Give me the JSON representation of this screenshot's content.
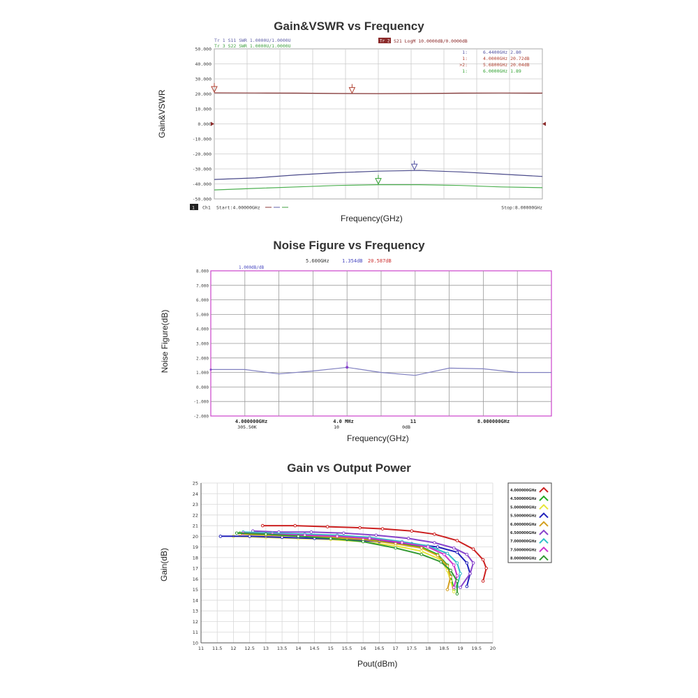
{
  "chart_data": [
    {
      "type": "line",
      "title": "Gain&VSWR vs Frequency",
      "xlabel": "Frequency(GHz)",
      "ylabel": "Gain&VSWR",
      "ylim": [
        -50,
        50
      ],
      "xlim": [
        4,
        8
      ],
      "ytick_labels": [
        "50.000",
        "40.000",
        "30.000",
        "20.000",
        "10.000",
        "0.000",
        "-10.000",
        "-20.000",
        "-30.000",
        "-40.000",
        "-50.000"
      ],
      "trace_header": {
        "tr1": "Tr 1  S11 SWR 1.0000U/1.0000U",
        "tr3": "Tr 3  S22 SWR 1.0000U/1.0000U",
        "tr2_badge": "Tr 2",
        "tr2": "S21 LogM 10.0000dB/0.0000dB"
      },
      "markers": [
        {
          "id": "1:",
          "text": "6.4400GHz 2.80",
          "color": "#5050a0"
        },
        {
          "id": "1:",
          "text": "4.0000GHz 20.72dB",
          "color": "#b04030"
        },
        {
          "id": ">2:",
          "text": "5.6800GHz 20.04dB",
          "color": "#b04030"
        },
        {
          "id": "1:",
          "text": "6.0000GHz 1.89",
          "color": "#30a030"
        }
      ],
      "footer": {
        "ch_badge": "1",
        "ch": "Ch1",
        "start": "Start:4.00000GHz",
        "stop": "Stop:8.00000GHz"
      },
      "series": [
        {
          "color": "#8b3a3a",
          "x": [
            4.0,
            4.5,
            5.0,
            5.5,
            6.0,
            6.5,
            7.0,
            7.5,
            8.0
          ],
          "values": [
            20.7,
            20.6,
            20.5,
            20.3,
            20.2,
            20.3,
            20.5,
            20.6,
            20.5
          ]
        },
        {
          "color": "#4a4a8a",
          "x": [
            4.0,
            4.5,
            5.0,
            5.5,
            6.0,
            6.5,
            7.0,
            7.5,
            8.0
          ],
          "values": [
            -37.0,
            -36.0,
            -34.0,
            -32.5,
            -31.5,
            -31.0,
            -32.0,
            -33.5,
            -35.0
          ]
        },
        {
          "color": "#4caf50",
          "x": [
            4.0,
            4.5,
            5.0,
            5.5,
            6.0,
            6.5,
            7.0,
            7.5,
            8.0
          ],
          "values": [
            -44.0,
            -43.0,
            -42.0,
            -41.0,
            -40.5,
            -40.5,
            -41.0,
            -42.0,
            -42.5
          ]
        }
      ]
    },
    {
      "type": "line",
      "title": "Noise Figure vs Frequency",
      "xlabel": "Frequency(GHz)",
      "ylabel": "Noise Figure(dB)",
      "ylim": [
        -2,
        8
      ],
      "ytick_labels": [
        "8.000",
        "7.000",
        "6.000",
        "5.000",
        "4.000",
        "3.000",
        "2.000",
        "1.000",
        "0.000",
        "-1.000",
        "-2.000"
      ],
      "header": {
        "freq": "5.600GHz",
        "nf": "1.354dB",
        "gain": "20.587dB"
      },
      "scale_label": "1.000dB/dB",
      "bottom_labels": [
        {
          "l1": "4.000000GHz",
          "l2": "305.50K"
        },
        {
          "l1": "4.0  MHz",
          "l2": "10"
        },
        {
          "l1": "11",
          "l2": "0dB"
        },
        {
          "l1": "8.000000GHz",
          "l2": ""
        }
      ],
      "series": [
        {
          "color": "#8080c0",
          "x": [
            4.0,
            4.4,
            4.8,
            5.2,
            5.6,
            6.0,
            6.4,
            6.8,
            7.2,
            7.6,
            8.0
          ],
          "values": [
            1.2,
            1.2,
            0.9,
            1.1,
            1.35,
            1.0,
            0.8,
            1.3,
            1.25,
            1.0,
            1.0
          ]
        }
      ]
    },
    {
      "type": "line",
      "title": "Gain vs Output Power",
      "xlabel": "Pout(dBm)",
      "ylabel": "Gain(dB)",
      "xlim": [
        11,
        20
      ],
      "ylim": [
        10,
        25
      ],
      "xtick_labels": [
        "11",
        "11.5",
        "12",
        "12.5",
        "13",
        "13.5",
        "14",
        "14.5",
        "15",
        "15.5",
        "16",
        "16.5",
        "17",
        "17.5",
        "18",
        "18.5",
        "19",
        "19.5",
        "20"
      ],
      "ytick_labels": [
        "25",
        "24",
        "23",
        "22",
        "21",
        "20",
        "19",
        "18",
        "17",
        "16",
        "15",
        "14",
        "13",
        "12",
        "11",
        "10"
      ],
      "series": [
        {
          "name": "4.000000GHz",
          "color": "#cc2020",
          "x": [
            12.9,
            13.9,
            14.9,
            15.9,
            16.6,
            17.5,
            18.2,
            18.9,
            19.4,
            19.7,
            19.8,
            19.7
          ],
          "values": [
            21.0,
            21.0,
            20.9,
            20.8,
            20.7,
            20.5,
            20.2,
            19.6,
            18.8,
            17.8,
            17.0,
            15.8
          ]
        },
        {
          "name": "4.500000GHz",
          "color": "#22aa22",
          "x": [
            12.2,
            13.0,
            14.0,
            15.0,
            16.0,
            17.0,
            17.8,
            18.3,
            18.6,
            18.7,
            18.8
          ],
          "values": [
            20.3,
            20.2,
            20.1,
            20.0,
            19.8,
            19.4,
            19.0,
            18.3,
            17.3,
            16.3,
            15.0
          ]
        },
        {
          "name": "5.000000GHz",
          "color": "#e6e63a",
          "x": [
            12.0,
            13.0,
            14.0,
            15.0,
            16.0,
            17.0,
            17.8,
            18.4,
            18.6,
            18.7,
            18.8
          ],
          "values": [
            20.0,
            19.9,
            19.8,
            19.7,
            19.5,
            19.1,
            18.6,
            17.8,
            16.8,
            15.8,
            14.8
          ]
        },
        {
          "name": "5.500000GHz",
          "color": "#2222bb",
          "x": [
            11.6,
            12.5,
            13.5,
            14.5,
            15.5,
            16.5,
            17.5,
            18.3,
            18.9,
            19.2,
            19.3,
            19.2
          ],
          "values": [
            20.0,
            20.0,
            19.9,
            19.8,
            19.7,
            19.5,
            19.3,
            19.0,
            18.5,
            17.5,
            16.5,
            15.3
          ]
        },
        {
          "name": "6.000000GHz",
          "color": "#d4a020",
          "x": [
            12.2,
            13.0,
            14.0,
            15.0,
            16.0,
            17.0,
            17.8,
            18.3,
            18.6,
            18.7,
            18.6
          ],
          "values": [
            20.2,
            20.1,
            20.0,
            19.9,
            19.7,
            19.3,
            18.9,
            18.2,
            17.2,
            16.2,
            15.0
          ]
        },
        {
          "name": "6.500000GHz",
          "color": "#8844cc",
          "x": [
            12.6,
            13.4,
            14.4,
            15.4,
            16.4,
            17.4,
            18.2,
            18.8,
            19.2,
            19.4,
            19.3,
            19.0
          ],
          "values": [
            20.5,
            20.4,
            20.4,
            20.3,
            20.1,
            19.8,
            19.4,
            18.9,
            18.3,
            17.5,
            16.5,
            15.2
          ]
        },
        {
          "name": "7.000000GHz",
          "color": "#30c0c8",
          "x": [
            12.3,
            13.2,
            14.2,
            15.2,
            16.2,
            17.2,
            18.0,
            18.6,
            18.9,
            19.0,
            18.9
          ],
          "values": [
            20.4,
            20.3,
            20.2,
            20.1,
            19.9,
            19.5,
            19.1,
            18.4,
            17.5,
            16.5,
            15.3
          ]
        },
        {
          "name": "7.500000GHz",
          "color": "#cc33cc",
          "x": [
            12.3,
            13.2,
            14.2,
            15.2,
            16.2,
            17.2,
            18.0,
            18.5,
            18.8,
            18.9,
            18.8
          ],
          "values": [
            20.3,
            20.2,
            20.1,
            20.0,
            19.8,
            19.4,
            19.0,
            18.3,
            17.3,
            16.3,
            15.2
          ]
        },
        {
          "name": "8.000000GHz",
          "color": "#339933",
          "x": [
            12.1,
            13.0,
            14.0,
            15.0,
            16.0,
            17.0,
            17.8,
            18.4,
            18.7,
            18.9,
            18.9
          ],
          "values": [
            20.3,
            20.2,
            20.0,
            19.8,
            19.5,
            18.9,
            18.3,
            17.6,
            16.8,
            15.8,
            14.6
          ]
        }
      ]
    }
  ]
}
